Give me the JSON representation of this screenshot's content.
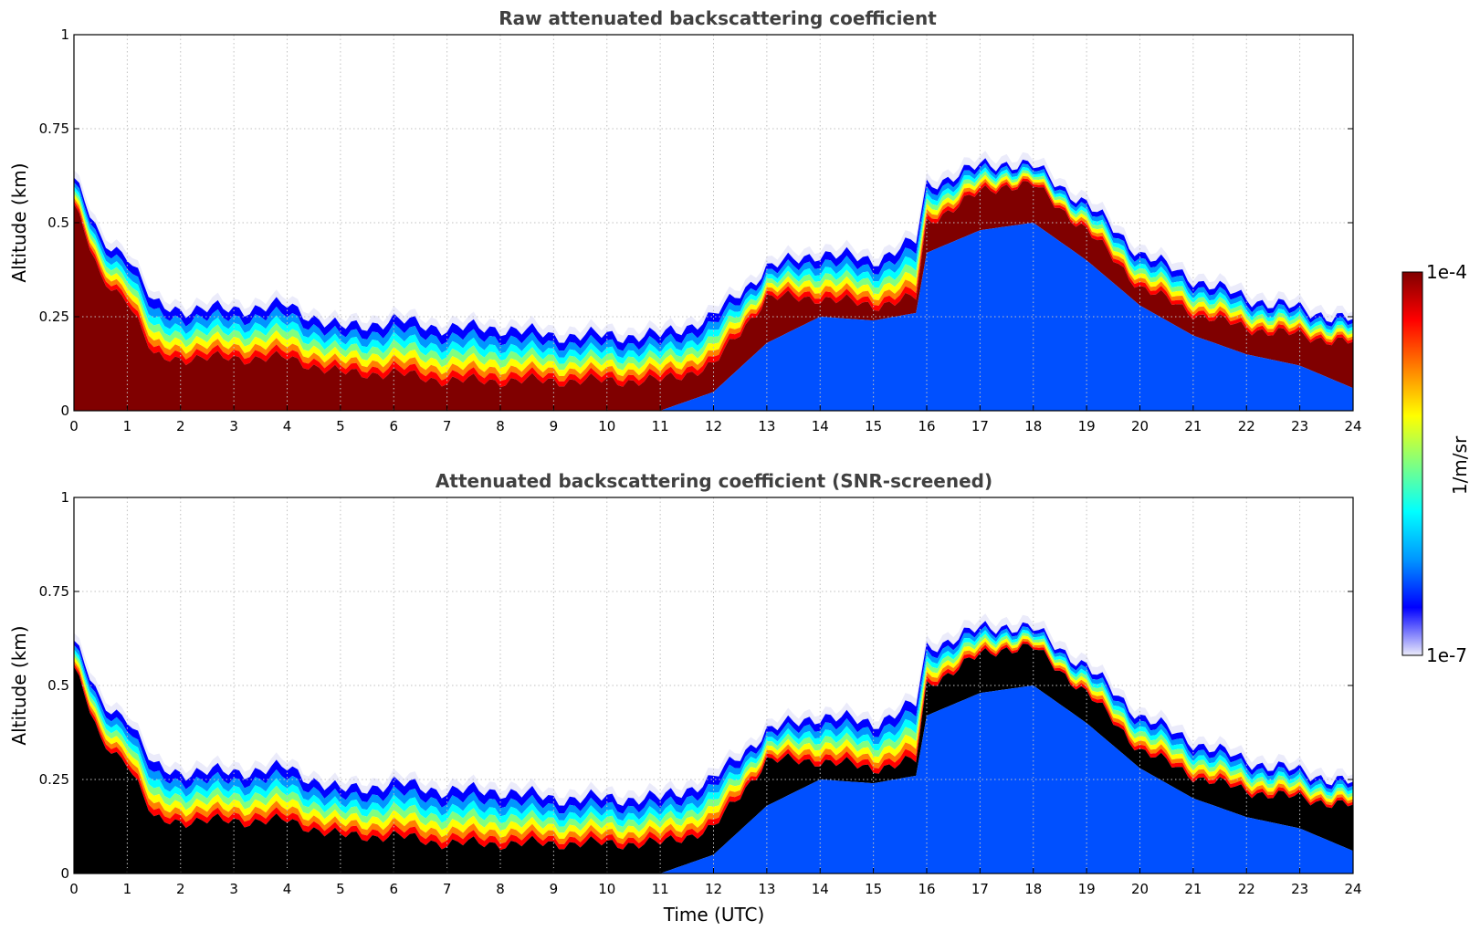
{
  "chart_data": [
    {
      "type": "heatmap",
      "title": "Raw attenuated backscattering coefficient",
      "xlabel": "",
      "ylabel": "Altitude (km)",
      "xlim": [
        0,
        24
      ],
      "ylim": [
        0,
        1
      ],
      "x_ticks": [
        "0",
        "1",
        "2",
        "3",
        "4",
        "5",
        "6",
        "7",
        "8",
        "9",
        "10",
        "11",
        "12",
        "13",
        "14",
        "15",
        "16",
        "17",
        "18",
        "19",
        "20",
        "21",
        "22",
        "23",
        "24"
      ],
      "y_ticks": [
        "0",
        "0.25",
        "0.5",
        "0.75",
        "1"
      ],
      "y_tick_values": [
        0,
        0.25,
        0.5,
        0.75,
        1
      ],
      "grid": true,
      "screened": false,
      "layer_top_km": {
        "time_utc": [
          0,
          0.5,
          1,
          1.5,
          2,
          3,
          4,
          5,
          6,
          7,
          8,
          9,
          10,
          11,
          12,
          13,
          14,
          15,
          15.8,
          16,
          17,
          17.5,
          18,
          19,
          20,
          21,
          22,
          23,
          24
        ],
        "altitude": [
          0.62,
          0.45,
          0.42,
          0.28,
          0.27,
          0.27,
          0.28,
          0.22,
          0.24,
          0.22,
          0.22,
          0.2,
          0.2,
          0.2,
          0.25,
          0.38,
          0.42,
          0.4,
          0.45,
          0.6,
          0.65,
          0.66,
          0.65,
          0.55,
          0.42,
          0.35,
          0.3,
          0.27,
          0.24
        ]
      },
      "dense_layer_top_km": {
        "time_utc": [
          0,
          0.5,
          1,
          1.5,
          2,
          3,
          4,
          5,
          6,
          7,
          8,
          9,
          10,
          11,
          12,
          13,
          14,
          15,
          15.8,
          16,
          17,
          17.5,
          18,
          19,
          20,
          21,
          22,
          23,
          24
        ],
        "altitude": [
          0.55,
          0.35,
          0.3,
          0.14,
          0.14,
          0.14,
          0.14,
          0.1,
          0.1,
          0.08,
          0.08,
          0.08,
          0.08,
          0.08,
          0.12,
          0.3,
          0.3,
          0.28,
          0.3,
          0.5,
          0.58,
          0.6,
          0.6,
          0.48,
          0.33,
          0.26,
          0.22,
          0.2,
          0.18
        ]
      },
      "dense_layer_bottom_km": {
        "time_utc": [
          0,
          1,
          2,
          11,
          12,
          13,
          14,
          15,
          15.8,
          16,
          17,
          18,
          19,
          20,
          21,
          22,
          23,
          24
        ],
        "altitude": [
          0,
          0,
          0,
          0,
          0.05,
          0.18,
          0.25,
          0.24,
          0.26,
          0.42,
          0.48,
          0.5,
          0.4,
          0.28,
          0.2,
          0.15,
          0.12,
          0.06
        ]
      }
    },
    {
      "type": "heatmap",
      "title": "Attenuated backscattering coefficient (SNR-screened)",
      "xlabel": "Time (UTC)",
      "ylabel": "Altitude (km)",
      "xlim": [
        0,
        24
      ],
      "ylim": [
        0,
        1
      ],
      "x_ticks": [
        "0",
        "1",
        "2",
        "3",
        "4",
        "5",
        "6",
        "7",
        "8",
        "9",
        "10",
        "11",
        "12",
        "13",
        "14",
        "15",
        "16",
        "17",
        "18",
        "19",
        "20",
        "21",
        "22",
        "23",
        "24"
      ],
      "y_ticks": [
        "0",
        "0.25",
        "0.5",
        "0.75",
        "1"
      ],
      "y_tick_values": [
        0,
        0.25,
        0.5,
        0.75,
        1
      ],
      "grid": true,
      "screened": true,
      "layer_top_km": {
        "time_utc": [
          0,
          0.5,
          1,
          1.5,
          2,
          3,
          4,
          5,
          6,
          7,
          8,
          9,
          10,
          11,
          12,
          13,
          14,
          15,
          15.8,
          16,
          17,
          17.5,
          18,
          19,
          20,
          21,
          22,
          23,
          24
        ],
        "altitude": [
          0.62,
          0.45,
          0.42,
          0.28,
          0.27,
          0.27,
          0.28,
          0.22,
          0.24,
          0.22,
          0.22,
          0.2,
          0.2,
          0.2,
          0.25,
          0.38,
          0.42,
          0.4,
          0.45,
          0.6,
          0.65,
          0.66,
          0.65,
          0.55,
          0.42,
          0.35,
          0.3,
          0.27,
          0.24
        ]
      },
      "dense_layer_top_km": {
        "time_utc": [
          0,
          0.5,
          1,
          1.5,
          2,
          3,
          4,
          5,
          6,
          7,
          8,
          9,
          10,
          11,
          12,
          13,
          14,
          15,
          15.8,
          16,
          17,
          17.5,
          18,
          19,
          20,
          21,
          22,
          23,
          24
        ],
        "altitude": [
          0.55,
          0.35,
          0.3,
          0.14,
          0.14,
          0.14,
          0.14,
          0.1,
          0.1,
          0.08,
          0.08,
          0.08,
          0.08,
          0.08,
          0.12,
          0.3,
          0.3,
          0.28,
          0.3,
          0.5,
          0.58,
          0.6,
          0.6,
          0.48,
          0.33,
          0.26,
          0.22,
          0.2,
          0.18
        ]
      },
      "dense_layer_bottom_km": {
        "time_utc": [
          0,
          1,
          2,
          11,
          12,
          13,
          14,
          15,
          15.8,
          16,
          17,
          18,
          19,
          20,
          21,
          22,
          23,
          24
        ],
        "altitude": [
          0,
          0,
          0,
          0,
          0.05,
          0.18,
          0.25,
          0.24,
          0.26,
          0.42,
          0.48,
          0.5,
          0.4,
          0.28,
          0.2,
          0.15,
          0.12,
          0.06
        ]
      }
    }
  ],
  "colorbar": {
    "max_label": "1e-4",
    "min_label": "1e-7",
    "unit_label": "1/m/sr",
    "scale": "log",
    "colors": [
      "#ebebfa",
      "#0000ff",
      "#0096ff",
      "#00ffff",
      "#80ff80",
      "#ffff00",
      "#ff8000",
      "#ff0000",
      "#800000"
    ]
  },
  "colors": {
    "dense_raw": "#800000",
    "dense_screened": "#000000",
    "below_layer": "#0050ff",
    "grid": "#c0c0c0"
  }
}
